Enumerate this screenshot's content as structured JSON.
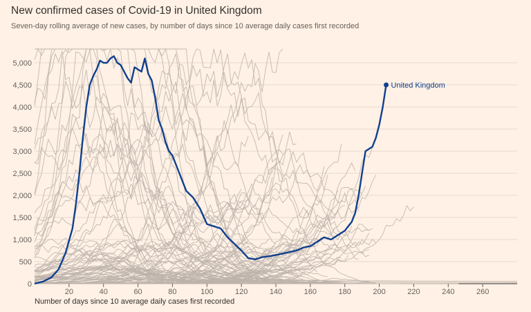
{
  "chart_data": {
    "type": "line",
    "title": "New confirmed cases of Covid-19 in United Kingdom",
    "subtitle": "Seven-day rolling average of new cases, by number of days since 10 average daily cases first recorded",
    "xlabel": "Number of days since 10 average daily cases first recorded",
    "ylabel": "",
    "xlim": [
      0,
      280
    ],
    "ylim": [
      0,
      5000
    ],
    "x_ticks": [
      20,
      40,
      60,
      80,
      100,
      120,
      140,
      160,
      180,
      200,
      220,
      240,
      260
    ],
    "y_ticks": [
      0,
      500,
      1000,
      1500,
      2000,
      2500,
      3000,
      3500,
      4000,
      4500,
      5000
    ],
    "y_tick_labels": [
      "0",
      "500",
      "1,000",
      "1,500",
      "2,000",
      "2,500",
      "3,000",
      "3,500",
      "4,000",
      "4,500",
      "5,000"
    ],
    "grid": "horizontal",
    "highlight_color": "#0f3f8e",
    "background_color": "#bdb3ab",
    "series": [
      {
        "name": "United Kingdom",
        "color": "#0f3f8e",
        "x": [
          0,
          5,
          10,
          14,
          18,
          22,
          24,
          26,
          28,
          30,
          32,
          34,
          36,
          38,
          40,
          42,
          44,
          46,
          48,
          50,
          52,
          54,
          56,
          58,
          60,
          62,
          64,
          66,
          68,
          70,
          72,
          74,
          76,
          78,
          80,
          84,
          88,
          92,
          96,
          100,
          104,
          108,
          112,
          116,
          120,
          124,
          128,
          132,
          136,
          140,
          146,
          152,
          156,
          160,
          164,
          168,
          172,
          176,
          180,
          184,
          186,
          188,
          190,
          192,
          194,
          196,
          198,
          200,
          202,
          204
        ],
        "y": [
          0,
          50,
          150,
          330,
          700,
          1250,
          1800,
          2500,
          3300,
          4000,
          4500,
          4700,
          4850,
          5050,
          5000,
          5000,
          5100,
          5150,
          5000,
          4950,
          4800,
          4650,
          4550,
          4900,
          4850,
          4800,
          5100,
          4750,
          4600,
          4200,
          3700,
          3500,
          3200,
          3000,
          2900,
          2500,
          2100,
          1950,
          1700,
          1350,
          1300,
          1250,
          1050,
          900,
          750,
          580,
          550,
          600,
          620,
          650,
          700,
          750,
          820,
          850,
          950,
          1050,
          1000,
          1100,
          1200,
          1400,
          1600,
          2000,
          2500,
          3000,
          3050,
          3100,
          3300,
          3600,
          4000,
          4500
        ]
      }
    ],
    "background_series_count": 110,
    "annotations": [
      {
        "text": "United Kingdom",
        "x": 204,
        "y": 4500
      }
    ]
  }
}
